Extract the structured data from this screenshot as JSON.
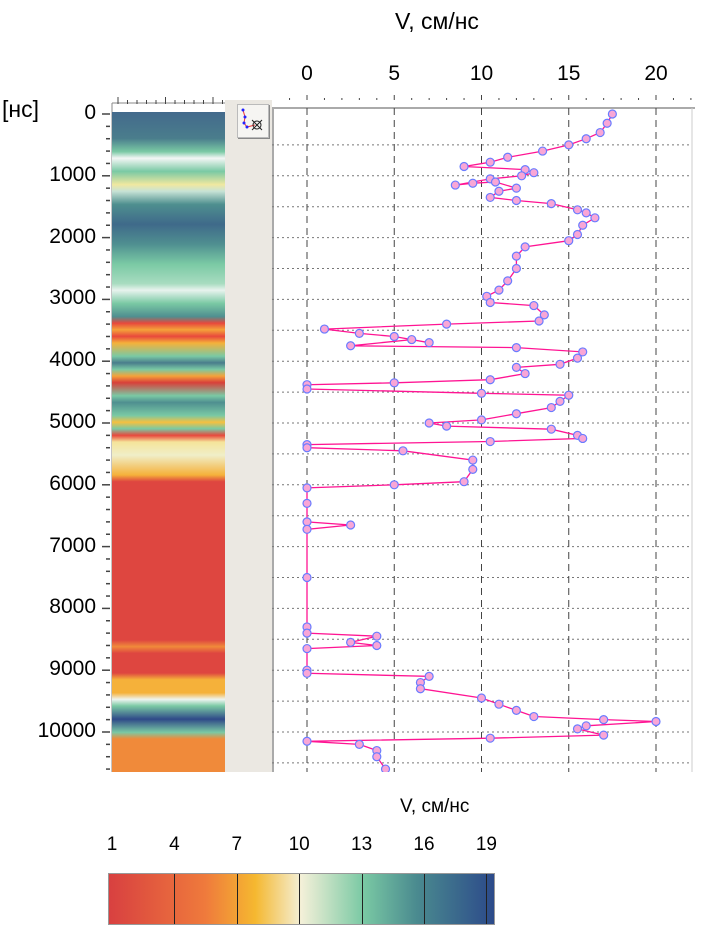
{
  "header": {
    "axis_title": "V, см/нс",
    "y_unit": "[нс]"
  },
  "colorbar": {
    "title": "V, см/нс",
    "ticks": [
      "1",
      "4",
      "7",
      "10",
      "13",
      "16",
      "19"
    ]
  },
  "chart_data": {
    "type": "line",
    "title": "",
    "xlabel": "V, см/нс",
    "ylabel": "[нс]",
    "xlim": [
      -3,
      22
    ],
    "ylim": [
      0,
      10700
    ],
    "x_ticks": [
      "0",
      "5",
      "10",
      "15",
      "20"
    ],
    "y_ticks": [
      "0",
      "1000",
      "2000",
      "3000",
      "4000",
      "5000",
      "6000",
      "7000",
      "8000",
      "9000",
      "10000"
    ],
    "series": [
      {
        "name": "V",
        "color": "#ff1493",
        "points": [
          [
            0,
            17.5
          ],
          [
            150,
            17.2
          ],
          [
            300,
            16.8
          ],
          [
            400,
            16
          ],
          [
            500,
            15
          ],
          [
            600,
            13.5
          ],
          [
            700,
            11.5
          ],
          [
            780,
            10.5
          ],
          [
            850,
            9
          ],
          [
            900,
            12.5
          ],
          [
            950,
            13
          ],
          [
            1000,
            12.3
          ],
          [
            1050,
            10.5
          ],
          [
            1150,
            8.5
          ],
          [
            1120,
            9.5
          ],
          [
            1100,
            10.8
          ],
          [
            1200,
            12
          ],
          [
            1250,
            11
          ],
          [
            1350,
            10.5
          ],
          [
            1400,
            12
          ],
          [
            1450,
            14
          ],
          [
            1550,
            15.5
          ],
          [
            1600,
            16
          ],
          [
            1680,
            16.5
          ],
          [
            1800,
            15.8
          ],
          [
            1950,
            15.5
          ],
          [
            2050,
            15
          ],
          [
            2150,
            12.5
          ],
          [
            2300,
            12
          ],
          [
            2500,
            12
          ],
          [
            2700,
            11.5
          ],
          [
            2850,
            11
          ],
          [
            2950,
            10.3
          ],
          [
            3050,
            10.5
          ],
          [
            3100,
            13
          ],
          [
            3250,
            13.6
          ],
          [
            3350,
            13.3
          ],
          [
            3400,
            8
          ],
          [
            3480,
            1
          ],
          [
            3550,
            3
          ],
          [
            3600,
            5
          ],
          [
            3700,
            7
          ],
          [
            3650,
            6
          ],
          [
            3750,
            2.5
          ],
          [
            3780,
            12
          ],
          [
            3850,
            15.8
          ],
          [
            3950,
            15.5
          ],
          [
            4050,
            14.5
          ],
          [
            4100,
            12
          ],
          [
            4200,
            12.5
          ],
          [
            4300,
            10.5
          ],
          [
            4350,
            5
          ],
          [
            4380,
            0
          ],
          [
            4450,
            0
          ],
          [
            4520,
            10
          ],
          [
            4550,
            15
          ],
          [
            4650,
            14.5
          ],
          [
            4750,
            14
          ],
          [
            4850,
            12
          ],
          [
            4950,
            10
          ],
          [
            5000,
            7
          ],
          [
            5050,
            8
          ],
          [
            5100,
            14
          ],
          [
            5200,
            15.5
          ],
          [
            5250,
            15.8
          ],
          [
            5300,
            10.5
          ],
          [
            5350,
            0
          ],
          [
            5400,
            0
          ],
          [
            5450,
            5.5
          ],
          [
            5600,
            9.5
          ],
          [
            5750,
            9.5
          ],
          [
            5950,
            9
          ],
          [
            6000,
            5
          ],
          [
            6050,
            0
          ],
          [
            6300,
            0
          ],
          [
            6600,
            0
          ],
          [
            6650,
            2.5
          ],
          [
            6720,
            0
          ],
          [
            7500,
            0
          ],
          [
            8300,
            0
          ],
          [
            8400,
            0
          ],
          [
            8450,
            4
          ],
          [
            8550,
            2.5
          ],
          [
            8600,
            4
          ],
          [
            8650,
            0
          ],
          [
            9000,
            0
          ],
          [
            9050,
            0
          ],
          [
            9100,
            7
          ],
          [
            9200,
            6.5
          ],
          [
            9300,
            6.5
          ],
          [
            9450,
            10
          ],
          [
            9550,
            11
          ],
          [
            9650,
            12
          ],
          [
            9750,
            13
          ],
          [
            9800,
            17
          ],
          [
            9830,
            20
          ],
          [
            9900,
            16
          ],
          [
            9950,
            15.5
          ],
          [
            10050,
            17
          ],
          [
            10100,
            10.5
          ],
          [
            10150,
            0
          ],
          [
            10200,
            3
          ],
          [
            10300,
            4
          ],
          [
            10400,
            4
          ],
          [
            10600,
            4.5
          ]
        ]
      }
    ]
  }
}
